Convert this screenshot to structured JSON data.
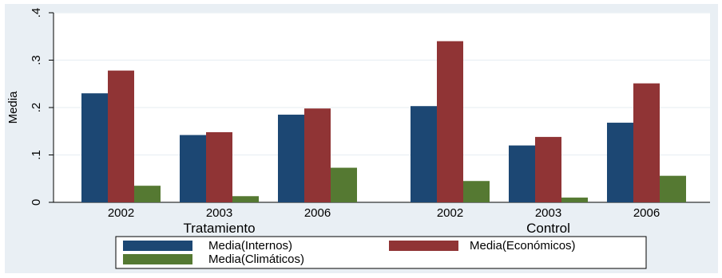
{
  "chart_data": {
    "type": "bar",
    "ylabel": "Media",
    "ylim": [
      0,
      0.4
    ],
    "yticks": [
      {
        "value": 0,
        "label": "0"
      },
      {
        "value": 0.1,
        "label": ".1"
      },
      {
        "value": 0.2,
        "label": ".2"
      },
      {
        "value": 0.3,
        "label": ".3"
      },
      {
        "value": 0.4,
        "label": ".4"
      }
    ],
    "grid": true,
    "legend_position": "bottom",
    "groups": [
      {
        "label": "Tratamiento",
        "categories": [
          "2002",
          "2003",
          "2006"
        ],
        "series": [
          {
            "name": "Media(Internos)",
            "values": [
              0.23,
              0.142,
              0.185
            ]
          },
          {
            "name": "Media(Económicos)",
            "values": [
              0.278,
              0.148,
              0.198
            ]
          },
          {
            "name": "Media(Climáticos)",
            "values": [
              0.035,
              0.013,
              0.073
            ]
          }
        ]
      },
      {
        "label": "Control",
        "categories": [
          "2002",
          "2003",
          "2006"
        ],
        "series": [
          {
            "name": "Media(Internos)",
            "values": [
              0.203,
              0.12,
              0.168
            ]
          },
          {
            "name": "Media(Económicos)",
            "values": [
              0.34,
              0.138,
              0.251
            ]
          },
          {
            "name": "Media(Climáticos)",
            "values": [
              0.045,
              0.01,
              0.056
            ]
          }
        ]
      }
    ],
    "colors": {
      "Media(Internos)": "#1c4773",
      "Media(Económicos)": "#903435",
      "Media(Climáticos)": "#557932",
      "plot_background": "#ffffff",
      "figure_background": "#e9eff4"
    }
  }
}
